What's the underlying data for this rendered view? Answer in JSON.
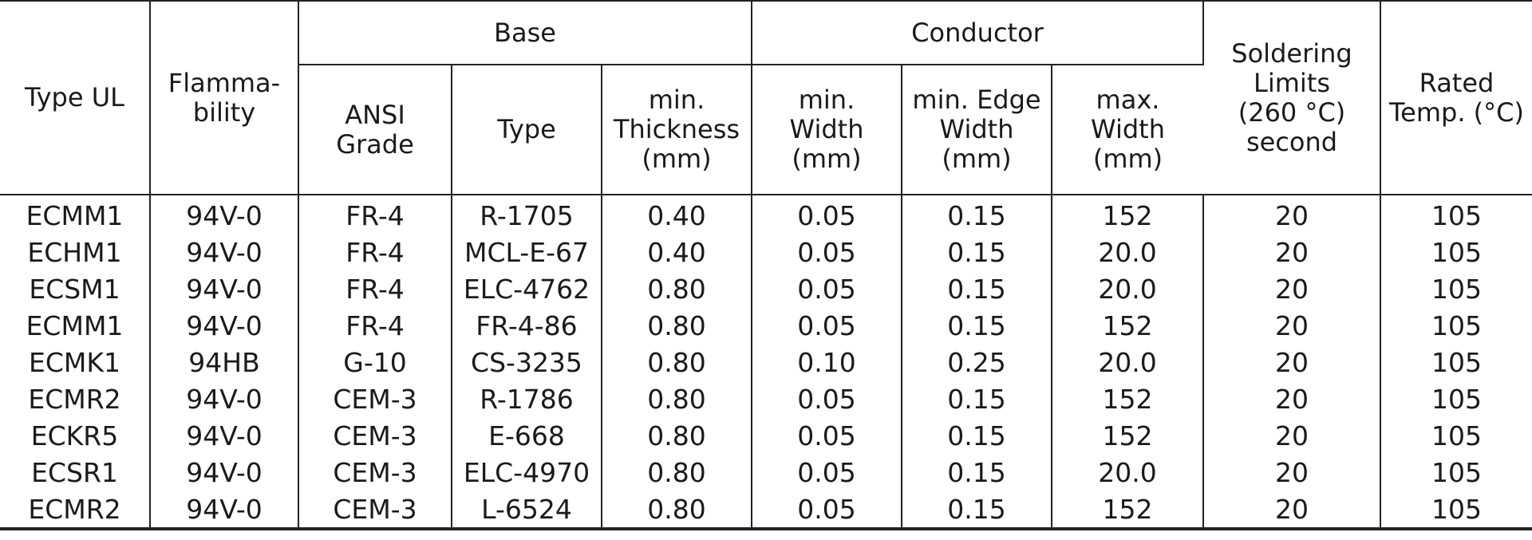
{
  "table": {
    "headers": {
      "type_ul": [
        "Type UL"
      ],
      "flammability": [
        "Flamma-",
        "bility"
      ],
      "base": [
        "Base"
      ],
      "conductor": [
        "Conductor"
      ],
      "soldering": [
        "Soldering",
        "Limits",
        "(260 °C)",
        "second"
      ],
      "rated_temp": [
        "Rated",
        "Temp. (°C)"
      ],
      "ansi_grade": [
        "ANSI",
        "Grade"
      ],
      "base_type": [
        "Type"
      ],
      "min_thickness": [
        "min.",
        "Thickness",
        "(mm)"
      ],
      "min_width": [
        "min.",
        "Width",
        "(mm)"
      ],
      "min_edge_width": [
        "min. Edge",
        "Width (mm)"
      ],
      "max_width": [
        "max.",
        "Width",
        "(mm)"
      ]
    },
    "rows": [
      [
        "ECMM1",
        "94V-0",
        "FR-4",
        "R-1705",
        "0.40",
        "0.05",
        "0.15",
        "152",
        "20",
        "105"
      ],
      [
        "ECHM1",
        "94V-0",
        "FR-4",
        "MCL-E-67",
        "0.40",
        "0.05",
        "0.15",
        "20.0",
        "20",
        "105"
      ],
      [
        "ECSM1",
        "94V-0",
        "FR-4",
        "ELC-4762",
        "0.80",
        "0.05",
        "0.15",
        "20.0",
        "20",
        "105"
      ],
      [
        "ECMM1",
        "94V-0",
        "FR-4",
        "FR-4-86",
        "0.80",
        "0.05",
        "0.15",
        "152",
        "20",
        "105"
      ],
      [
        "ECMK1",
        "94HB",
        "G-10",
        "CS-3235",
        "0.80",
        "0.10",
        "0.25",
        "20.0",
        "20",
        "105"
      ],
      [
        "ECMR2",
        "94V-0",
        "CEM-3",
        "R-1786",
        "0.80",
        "0.05",
        "0.15",
        "152",
        "20",
        "105"
      ],
      [
        "ECKR5",
        "94V-0",
        "CEM-3",
        "E-668",
        "0.80",
        "0.05",
        "0.15",
        "152",
        "20",
        "105"
      ],
      [
        "ECSR1",
        "94V-0",
        "CEM-3",
        "ELC-4970",
        "0.80",
        "0.05",
        "0.15",
        "20.0",
        "20",
        "105"
      ],
      [
        "ECMR2",
        "94V-0",
        "CEM-3",
        "L-6524",
        "0.80",
        "0.05",
        "0.15",
        "152",
        "20",
        "105"
      ]
    ]
  }
}
